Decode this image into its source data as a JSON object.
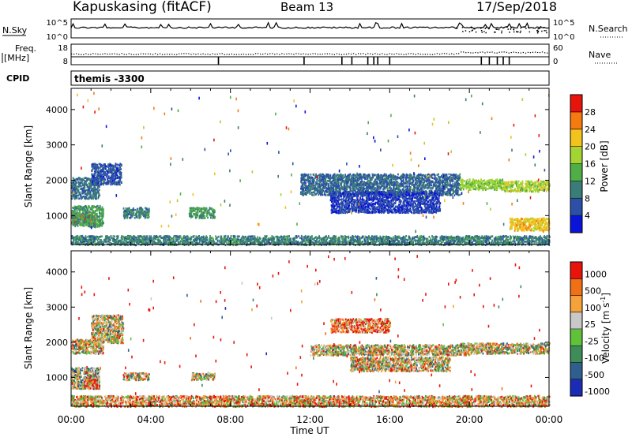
{
  "header": {
    "site": "Kapuskasing (fitACF)",
    "beam": "Beam 13",
    "date": "17/Sep/2018"
  },
  "strip_panels": {
    "nsky": {
      "left_label": "N.Sky",
      "left_ticks": [
        "10^5",
        "10^0"
      ],
      "right_label": "N.Search",
      "right_ticks": [
        "10^5",
        "10^0"
      ],
      "right_legend_line": "dotted"
    },
    "freq": {
      "left_label_line1": "Freq.",
      "left_label_line2": "[MHz]",
      "left_ticks": [
        "18",
        "8"
      ],
      "right_label": "Nave",
      "right_ticks": [
        "60",
        "0"
      ],
      "right_legend_line": "dotted"
    },
    "cpid": {
      "label": "CPID",
      "value": "themis -3300"
    }
  },
  "chart_data": [
    {
      "type": "heatmap",
      "name": "power",
      "ylabel": "Slant Range [km]",
      "ylim": [
        180,
        4600
      ],
      "yticks": [
        1000,
        2000,
        3000,
        4000
      ],
      "xlim": [
        0,
        24
      ],
      "colorbar": {
        "label": "Power [dB]",
        "range": [
          0,
          32
        ],
        "ticks": [
          "4",
          "8",
          "12",
          "16",
          "20",
          "24",
          "28"
        ],
        "colors": [
          "#0a14d8",
          "#2c4fa8",
          "#3a7d78",
          "#4fae46",
          "#a4d432",
          "#f2c21d",
          "#f57a10",
          "#e8140c"
        ]
      },
      "regions": [
        {
          "t": [
            0.0,
            1.4
          ],
          "r": [
            1500,
            2100
          ],
          "v": 9
        },
        {
          "t": [
            0.0,
            1.2
          ],
          "r": [
            780,
            1050
          ],
          "v": 28
        },
        {
          "t": [
            0.0,
            1.6
          ],
          "r": [
            700,
            1300
          ],
          "v": 12
        },
        {
          "t": [
            1.0,
            2.5
          ],
          "r": [
            1900,
            2500
          ],
          "v": 6
        },
        {
          "t": [
            2.6,
            3.9
          ],
          "r": [
            950,
            1250
          ],
          "v": 10
        },
        {
          "t": [
            5.9,
            7.2
          ],
          "r": [
            950,
            1250
          ],
          "v": 12
        },
        {
          "t": [
            11.5,
            19.5
          ],
          "r": [
            1600,
            2200
          ],
          "v": 8
        },
        {
          "t": [
            13.0,
            18.5
          ],
          "r": [
            1100,
            1700
          ],
          "v": 5
        },
        {
          "t": [
            19.5,
            21.7
          ],
          "r": [
            1750,
            2050
          ],
          "v": 17
        },
        {
          "t": [
            21.7,
            24.0
          ],
          "r": [
            1700,
            2000
          ],
          "v": 18
        },
        {
          "t": [
            22.0,
            24.0
          ],
          "r": [
            600,
            950
          ],
          "v": 22
        },
        {
          "t": [
            0.0,
            24.0
          ],
          "r": [
            190,
            450
          ],
          "v": 10
        }
      ]
    },
    {
      "type": "heatmap",
      "name": "velocity",
      "ylabel": "Slant Range [km]",
      "ylim": [
        180,
        4600
      ],
      "yticks": [
        1000,
        2000,
        3000,
        4000
      ],
      "xlim": [
        0,
        24
      ],
      "xticks": [
        "00:00",
        "04:00",
        "08:00",
        "12:00",
        "16:00",
        "20:00",
        "00:00"
      ],
      "xlabel": "Time UT",
      "colorbar": {
        "label": "Velocity [m s^-1]",
        "ticks": [
          "1000",
          "500",
          "100",
          "25",
          "-25",
          "-100",
          "-500",
          "-1000"
        ],
        "colors": [
          "#1b2cb4",
          "#2f5f8f",
          "#3d8c5a",
          "#5fc23a",
          "#c8c8c8",
          "#f5a23a",
          "#f07016",
          "#e8140c"
        ]
      },
      "regions": [
        {
          "t": [
            0.0,
            1.6
          ],
          "r": [
            1700,
            2100
          ],
          "v": 4
        },
        {
          "t": [
            0.0,
            1.4
          ],
          "r": [
            700,
            1300
          ],
          "v": 3
        },
        {
          "t": [
            0.6,
            1.3
          ],
          "r": [
            700,
            1050
          ],
          "v": 6
        },
        {
          "t": [
            1.0,
            2.6
          ],
          "r": [
            2000,
            2800
          ],
          "v": 4
        },
        {
          "t": [
            2.6,
            3.9
          ],
          "r": [
            950,
            1150
          ],
          "v": 4
        },
        {
          "t": [
            6.0,
            7.2
          ],
          "r": [
            950,
            1150
          ],
          "v": 4
        },
        {
          "t": [
            12.0,
            20.0
          ],
          "r": [
            1650,
            1950
          ],
          "v": 4
        },
        {
          "t": [
            13.0,
            16.0
          ],
          "r": [
            2300,
            2700
          ],
          "v": 6
        },
        {
          "t": [
            14.0,
            19.0
          ],
          "r": [
            1200,
            1600
          ],
          "v": 4
        },
        {
          "t": [
            19.5,
            24.0
          ],
          "r": [
            1700,
            2000
          ],
          "v": 4
        },
        {
          "t": [
            0.0,
            24.0
          ],
          "r": [
            190,
            500
          ],
          "v": 5
        }
      ]
    }
  ]
}
